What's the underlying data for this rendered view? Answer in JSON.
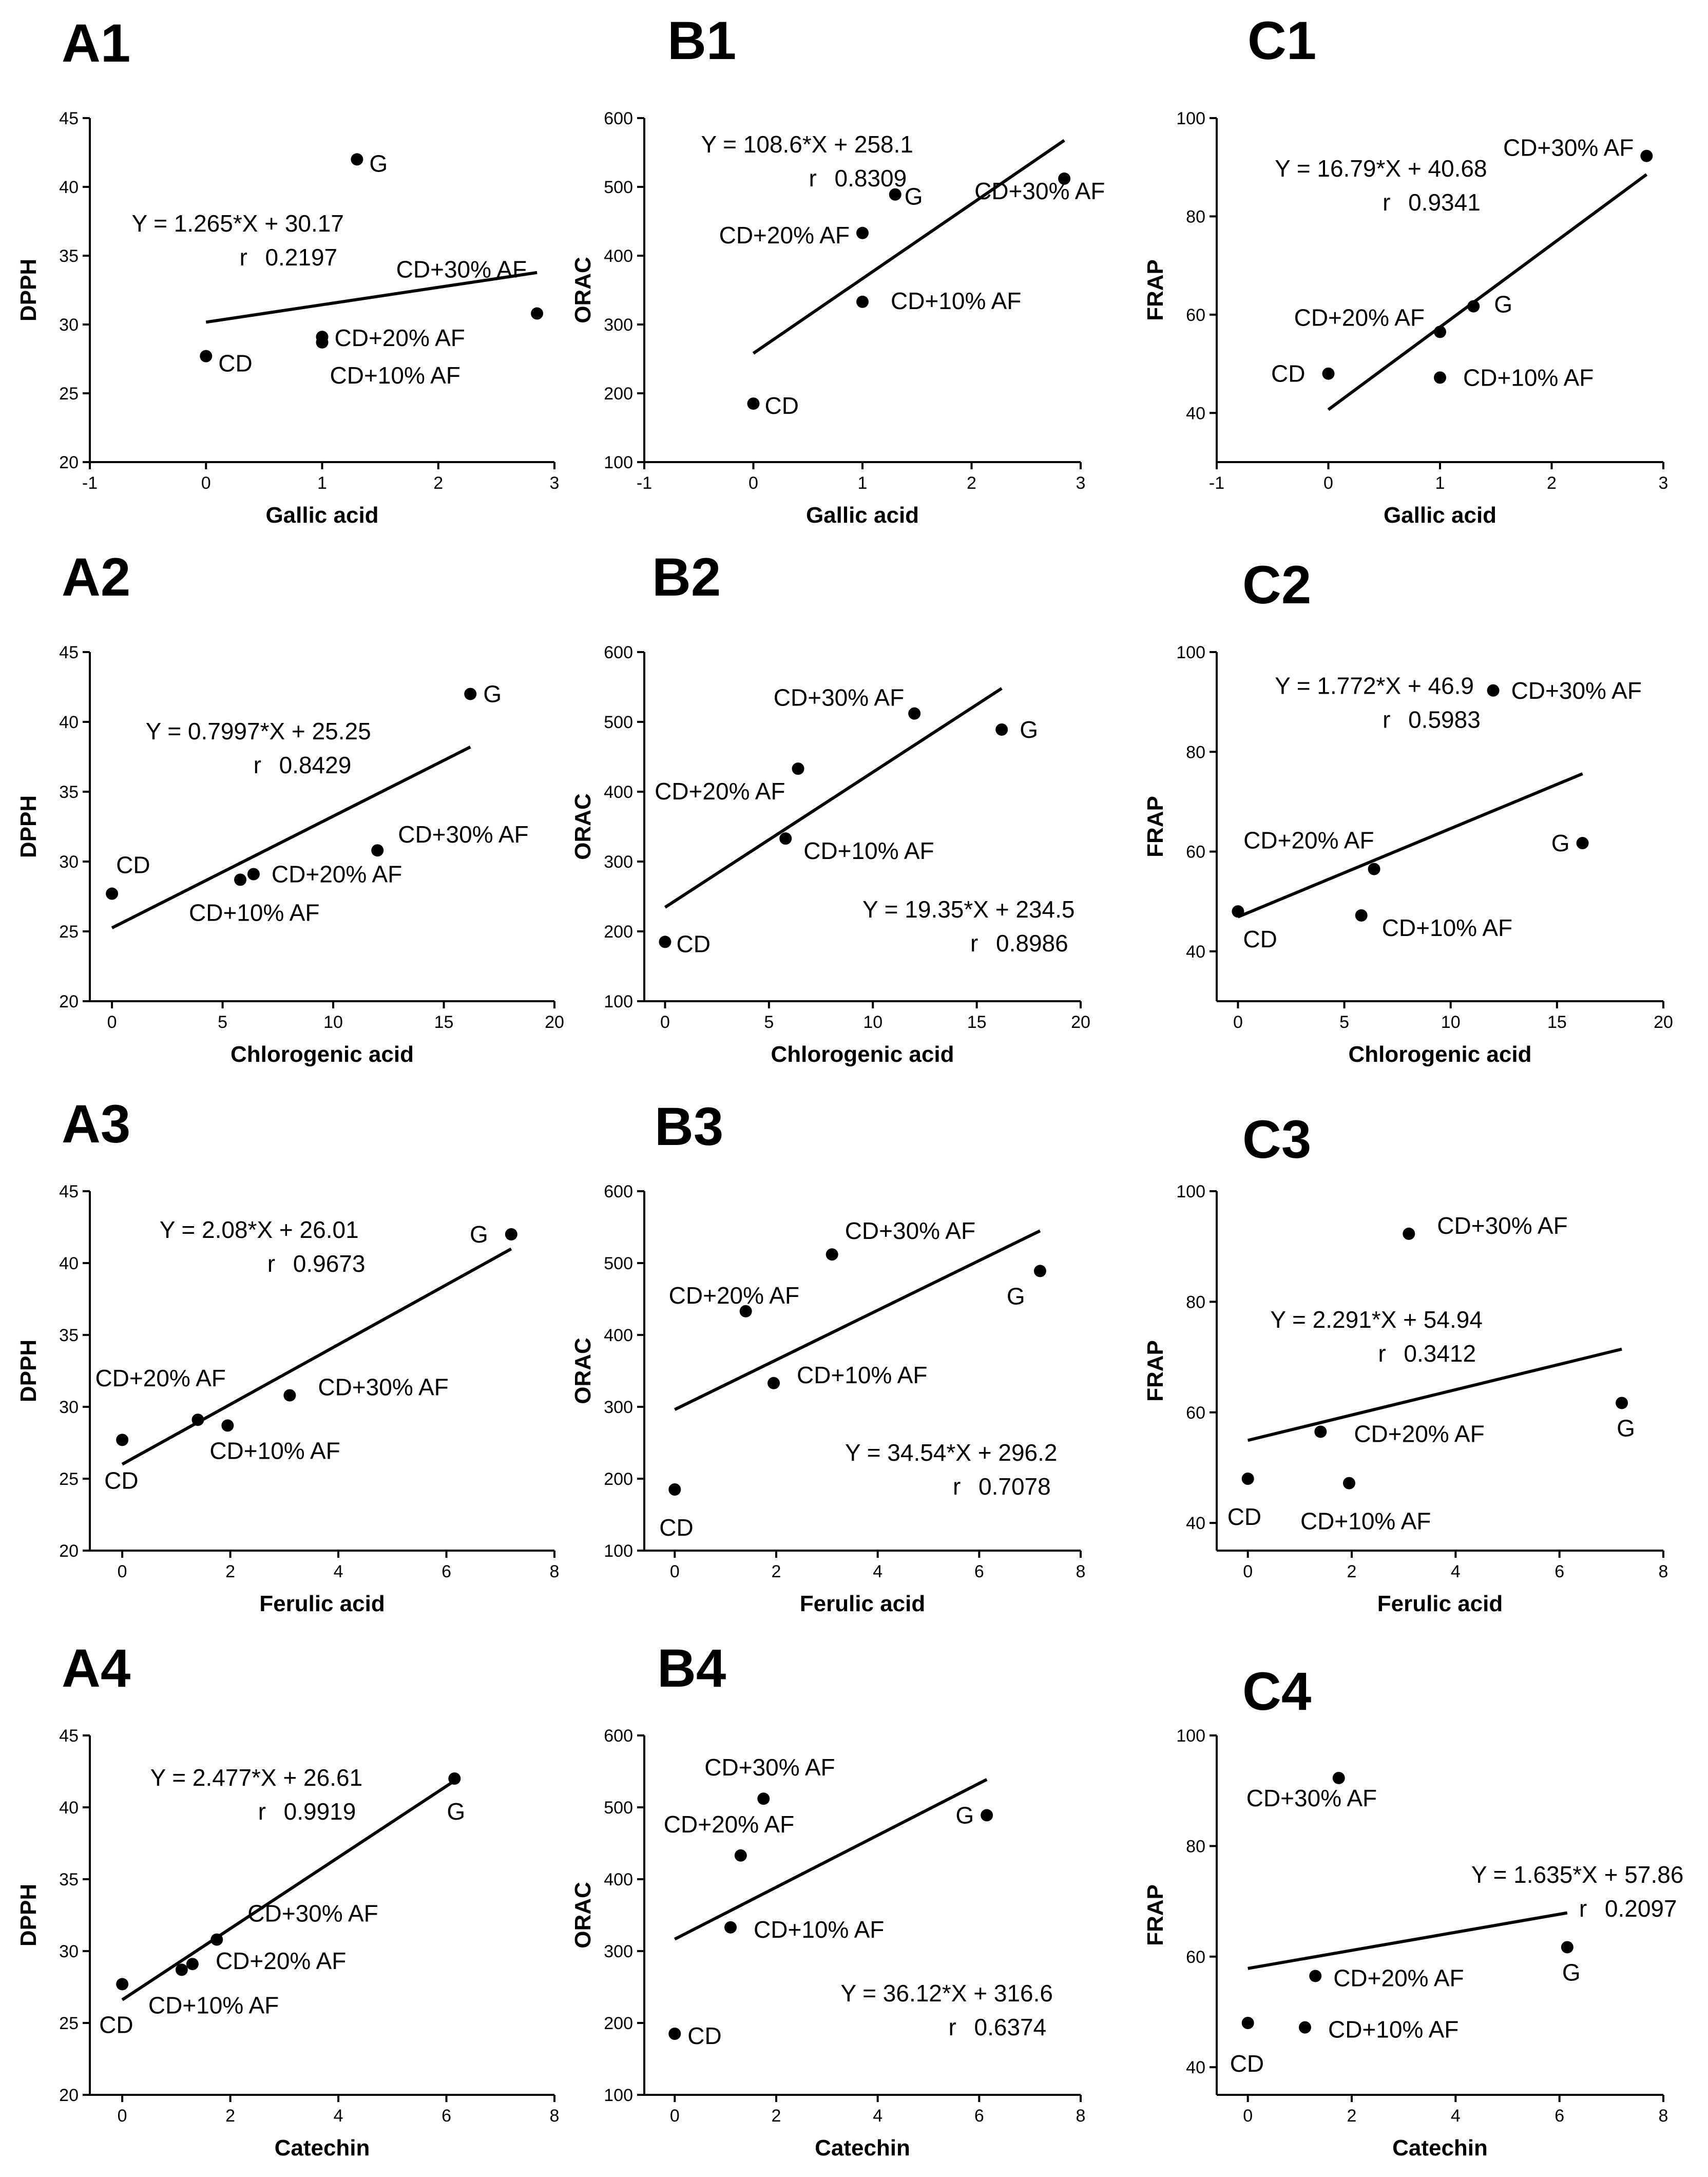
{
  "figure": {
    "chart_data": [
      {
        "id": "A1",
        "type": "scatter",
        "title": "A1",
        "xlabel": "Gallic acid",
        "ylabel": "DPPH",
        "xlim": [
          -1,
          3
        ],
        "ylim": [
          20,
          45
        ],
        "xticks": [
          "-1",
          "0",
          "1",
          "2",
          "3"
        ],
        "yticks": [
          "20",
          "25",
          "30",
          "35",
          "40",
          "45"
        ],
        "points": [
          {
            "label": "CD",
            "x": 0,
            "y": 27.7
          },
          {
            "label": "CD+10% AF",
            "x": 1.0,
            "y": 28.7
          },
          {
            "label": "CD+20% AF",
            "x": 1.0,
            "y": 29.1
          },
          {
            "label": "CD+30% AF",
            "x": 2.85,
            "y": 30.8
          },
          {
            "label": "G",
            "x": 1.3,
            "y": 42.0
          }
        ],
        "fit": {
          "slope": 1.265,
          "intercept": 30.17,
          "x_range": [
            0,
            2.85
          ]
        },
        "equation": "Y = 1.265*X + 30.17",
        "r_label": "r",
        "r_value": "0.2197"
      },
      {
        "id": "B1",
        "type": "scatter",
        "title": "B1",
        "xlabel": "Gallic acid",
        "ylabel": "ORAC",
        "xlim": [
          -1,
          3
        ],
        "ylim": [
          100,
          600
        ],
        "xticks": [
          "-1",
          "0",
          "1",
          "2",
          "3"
        ],
        "yticks": [
          "100",
          "200",
          "300",
          "400",
          "500",
          "600"
        ],
        "points": [
          {
            "label": "CD",
            "x": 0,
            "y": 185
          },
          {
            "label": "CD+10% AF",
            "x": 1.0,
            "y": 333
          },
          {
            "label": "CD+20% AF",
            "x": 1.0,
            "y": 433
          },
          {
            "label": "G",
            "x": 1.3,
            "y": 489
          },
          {
            "label": "CD+30% AF",
            "x": 2.85,
            "y": 512
          }
        ],
        "fit": {
          "slope": 108.6,
          "intercept": 258.1,
          "x_range": [
            0,
            2.85
          ]
        },
        "equation": "Y = 108.6*X + 258.1",
        "r_label": "r",
        "r_value": "0.8309"
      },
      {
        "id": "C1",
        "type": "scatter",
        "title": "C1",
        "xlabel": "Gallic acid",
        "ylabel": "FRAP",
        "xlim": [
          -1,
          3
        ],
        "ylim": [
          30,
          100
        ],
        "xticks": [
          "-1",
          "0",
          "1",
          "2",
          "3"
        ],
        "yticks": [
          "40",
          "60",
          "80",
          "100"
        ],
        "points": [
          {
            "label": "CD",
            "x": 0,
            "y": 48
          },
          {
            "label": "CD+10% AF",
            "x": 1.0,
            "y": 47.2
          },
          {
            "label": "CD+20% AF",
            "x": 1.0,
            "y": 56.5
          },
          {
            "label": "G",
            "x": 1.3,
            "y": 61.7
          },
          {
            "label": "CD+30% AF",
            "x": 2.85,
            "y": 92.3
          }
        ],
        "fit": {
          "slope": 16.79,
          "intercept": 40.68,
          "x_range": [
            0,
            2.85
          ]
        },
        "equation": "Y = 16.79*X + 40.68",
        "r_label": "r",
        "r_value": "0.9341"
      },
      {
        "id": "A2",
        "type": "scatter",
        "title": "A2",
        "xlabel": "Chlorogenic acid",
        "ylabel": "DPPH",
        "xlim": [
          -1,
          20
        ],
        "ylim": [
          20,
          45
        ],
        "xticks": [
          "0",
          "5",
          "10",
          "15",
          "20"
        ],
        "yticks": [
          "20",
          "25",
          "30",
          "35",
          "40",
          "45"
        ],
        "points": [
          {
            "label": "CD",
            "x": 0,
            "y": 27.7
          },
          {
            "label": "CD+10% AF",
            "x": 5.8,
            "y": 28.7
          },
          {
            "label": "CD+20% AF",
            "x": 6.4,
            "y": 29.1
          },
          {
            "label": "CD+30% AF",
            "x": 12.0,
            "y": 30.8
          },
          {
            "label": "G",
            "x": 16.2,
            "y": 42.0
          }
        ],
        "fit": {
          "slope": 0.7997,
          "intercept": 25.25,
          "x_range": [
            0,
            16.2
          ]
        },
        "equation": "Y = 0.7997*X + 25.25",
        "r_label": "r",
        "r_value": "0.8429"
      },
      {
        "id": "B2",
        "type": "scatter",
        "title": "B2",
        "xlabel": "Chlorogenic acid",
        "ylabel": "ORAC",
        "xlim": [
          -1,
          20
        ],
        "ylim": [
          100,
          600
        ],
        "xticks": [
          "0",
          "5",
          "10",
          "15",
          "20"
        ],
        "yticks": [
          "100",
          "200",
          "300",
          "400",
          "500",
          "600"
        ],
        "points": [
          {
            "label": "CD",
            "x": 0,
            "y": 185
          },
          {
            "label": "CD+10% AF",
            "x": 5.8,
            "y": 333
          },
          {
            "label": "CD+20% AF",
            "x": 6.4,
            "y": 433
          },
          {
            "label": "CD+30% AF",
            "x": 12.0,
            "y": 512
          },
          {
            "label": "G",
            "x": 16.2,
            "y": 489
          }
        ],
        "fit": {
          "slope": 19.35,
          "intercept": 234.5,
          "x_range": [
            0,
            16.2
          ]
        },
        "equation": "Y = 19.35*X + 234.5",
        "r_label": "r",
        "r_value": "0.8986"
      },
      {
        "id": "C2",
        "type": "scatter",
        "title": "C2",
        "xlabel": "Chlorogenic acid",
        "ylabel": "FRAP",
        "xlim": [
          -1,
          20
        ],
        "ylim": [
          30,
          100
        ],
        "xticks": [
          "0",
          "5",
          "10",
          "15",
          "20"
        ],
        "yticks": [
          "40",
          "60",
          "80",
          "100"
        ],
        "points": [
          {
            "label": "CD",
            "x": 0,
            "y": 48
          },
          {
            "label": "CD+10% AF",
            "x": 5.8,
            "y": 47.2
          },
          {
            "label": "CD+20% AF",
            "x": 6.4,
            "y": 56.5
          },
          {
            "label": "CD+30% AF",
            "x": 12.0,
            "y": 92.3
          },
          {
            "label": "G",
            "x": 16.2,
            "y": 61.7
          }
        ],
        "fit": {
          "slope": 1.772,
          "intercept": 46.9,
          "x_range": [
            0,
            16.2
          ]
        },
        "equation": "Y = 1.772*X + 46.9",
        "r_label": "r",
        "r_value": "0.5983"
      },
      {
        "id": "A3",
        "type": "scatter",
        "title": "A3",
        "xlabel": "Ferulic acid",
        "ylabel": "DPPH",
        "xlim": [
          -0.6,
          8
        ],
        "ylim": [
          20,
          45
        ],
        "xticks": [
          "0",
          "2",
          "4",
          "6",
          "8"
        ],
        "yticks": [
          "20",
          "25",
          "30",
          "35",
          "40",
          "45"
        ],
        "points": [
          {
            "label": "CD",
            "x": 0,
            "y": 27.7
          },
          {
            "label": "CD+20% AF",
            "x": 1.4,
            "y": 29.1
          },
          {
            "label": "CD+10% AF",
            "x": 1.95,
            "y": 28.7
          },
          {
            "label": "CD+30% AF",
            "x": 3.1,
            "y": 30.8
          },
          {
            "label": "G",
            "x": 7.2,
            "y": 42.0
          }
        ],
        "fit": {
          "slope": 2.08,
          "intercept": 26.01,
          "x_range": [
            0,
            7.2
          ]
        },
        "equation": "Y = 2.08*X + 26.01",
        "r_label": "r",
        "r_value": "0.9673"
      },
      {
        "id": "B3",
        "type": "scatter",
        "title": "B3",
        "xlabel": "Ferulic acid",
        "ylabel": "ORAC",
        "xlim": [
          -0.6,
          8
        ],
        "ylim": [
          100,
          600
        ],
        "xticks": [
          "0",
          "2",
          "4",
          "6",
          "8"
        ],
        "yticks": [
          "100",
          "200",
          "300",
          "400",
          "500",
          "600"
        ],
        "points": [
          {
            "label": "CD",
            "x": 0,
            "y": 185
          },
          {
            "label": "CD+20% AF",
            "x": 1.4,
            "y": 433
          },
          {
            "label": "CD+10% AF",
            "x": 1.95,
            "y": 333
          },
          {
            "label": "CD+30% AF",
            "x": 3.1,
            "y": 512
          },
          {
            "label": "G",
            "x": 7.2,
            "y": 489
          }
        ],
        "fit": {
          "slope": 34.54,
          "intercept": 296.2,
          "x_range": [
            0,
            7.2
          ]
        },
        "equation": "Y = 34.54*X + 296.2",
        "r_label": "r",
        "r_value": "0.7078"
      },
      {
        "id": "C3",
        "type": "scatter",
        "title": "C3",
        "xlabel": "Ferulic acid",
        "ylabel": "FRAP",
        "xlim": [
          -0.6,
          8
        ],
        "ylim": [
          35,
          100
        ],
        "xticks": [
          "0",
          "2",
          "4",
          "6",
          "8"
        ],
        "yticks": [
          "40",
          "60",
          "80",
          "100"
        ],
        "points": [
          {
            "label": "CD",
            "x": 0,
            "y": 48
          },
          {
            "label": "CD+20% AF",
            "x": 1.4,
            "y": 56.5
          },
          {
            "label": "CD+10% AF",
            "x": 1.95,
            "y": 47.2
          },
          {
            "label": "CD+30% AF",
            "x": 3.1,
            "y": 92.3
          },
          {
            "label": "G",
            "x": 7.2,
            "y": 61.7
          }
        ],
        "fit": {
          "slope": 2.291,
          "intercept": 54.94,
          "x_range": [
            0,
            7.2
          ]
        },
        "equation": "Y = 2.291*X + 54.94",
        "r_label": "r",
        "r_value": "0.3412"
      },
      {
        "id": "A4",
        "type": "scatter",
        "title": "A4",
        "xlabel": "Catechin",
        "ylabel": "DPPH",
        "xlim": [
          -0.6,
          8
        ],
        "ylim": [
          20,
          45
        ],
        "xticks": [
          "0",
          "2",
          "4",
          "6",
          "8"
        ],
        "yticks": [
          "20",
          "25",
          "30",
          "35",
          "40",
          "45"
        ],
        "points": [
          {
            "label": "CD",
            "x": 0,
            "y": 27.7
          },
          {
            "label": "CD+10% AF",
            "x": 1.1,
            "y": 28.7
          },
          {
            "label": "CD+20% AF",
            "x": 1.3,
            "y": 29.1
          },
          {
            "label": "CD+30% AF",
            "x": 1.75,
            "y": 30.8
          },
          {
            "label": "G",
            "x": 6.15,
            "y": 42.0
          }
        ],
        "fit": {
          "slope": 2.477,
          "intercept": 26.61,
          "x_range": [
            0,
            6.15
          ]
        },
        "equation": "Y = 2.477*X + 26.61",
        "r_label": "r",
        "r_value": "0.9919"
      },
      {
        "id": "B4",
        "type": "scatter",
        "title": "B4",
        "xlabel": "Catechin",
        "ylabel": "ORAC",
        "xlim": [
          -0.6,
          8
        ],
        "ylim": [
          100,
          600
        ],
        "xticks": [
          "0",
          "2",
          "4",
          "6",
          "8"
        ],
        "yticks": [
          "100",
          "200",
          "300",
          "400",
          "500",
          "600"
        ],
        "points": [
          {
            "label": "CD",
            "x": 0,
            "y": 185
          },
          {
            "label": "CD+10% AF",
            "x": 1.1,
            "y": 333
          },
          {
            "label": "CD+20% AF",
            "x": 1.3,
            "y": 433
          },
          {
            "label": "CD+30% AF",
            "x": 1.75,
            "y": 512
          },
          {
            "label": "G",
            "x": 6.15,
            "y": 489
          }
        ],
        "fit": {
          "slope": 36.12,
          "intercept": 316.6,
          "x_range": [
            0,
            6.15
          ]
        },
        "equation": "Y = 36.12*X + 316.6",
        "r_label": "r",
        "r_value": "0.6374"
      },
      {
        "id": "C4",
        "type": "scatter",
        "title": "C4",
        "xlabel": "Catechin",
        "ylabel": "FRAP",
        "xlim": [
          -0.6,
          8
        ],
        "ylim": [
          35,
          100
        ],
        "xticks": [
          "0",
          "2",
          "4",
          "6",
          "8"
        ],
        "yticks": [
          "40",
          "60",
          "80",
          "100"
        ],
        "points": [
          {
            "label": "CD",
            "x": 0,
            "y": 48
          },
          {
            "label": "CD+10% AF",
            "x": 1.1,
            "y": 47.2
          },
          {
            "label": "CD+20% AF",
            "x": 1.3,
            "y": 56.5
          },
          {
            "label": "CD+30% AF",
            "x": 1.75,
            "y": 92.3
          },
          {
            "label": "G",
            "x": 6.15,
            "y": 61.7
          }
        ],
        "fit": {
          "slope": 1.635,
          "intercept": 57.86,
          "x_range": [
            0,
            6.15
          ]
        },
        "equation": "Y = 1.635*X + 57.86",
        "r_label": "r",
        "r_value": "0.2097"
      }
    ]
  }
}
